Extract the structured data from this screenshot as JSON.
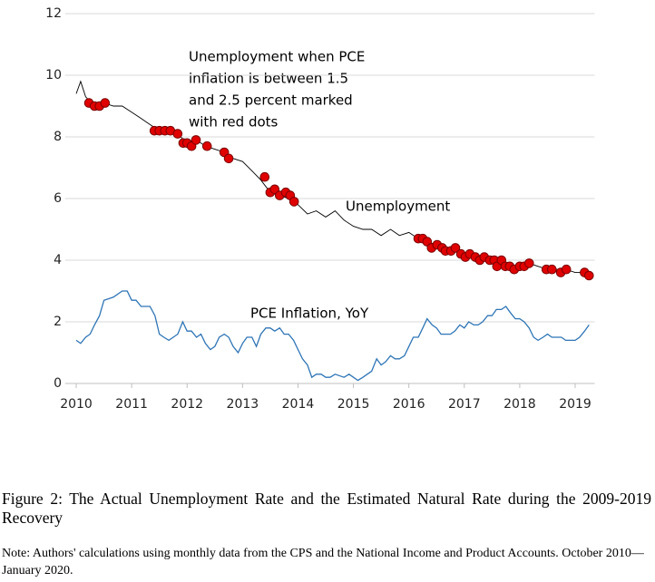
{
  "chart_data": {
    "type": "line",
    "xlim": [
      2009.8,
      2019.35
    ],
    "xticks": [
      2010,
      2011,
      2012,
      2013,
      2014,
      2015,
      2016,
      2017,
      2018,
      2019
    ],
    "ylim": [
      0,
      12
    ],
    "yticks": [
      0,
      2,
      4,
      6,
      8,
      10,
      12
    ],
    "grid": true,
    "annotations": [
      "Unemployment when PCE",
      "inflation is between 1.5",
      "and 2.5 percent marked",
      "with red dots"
    ],
    "series": [
      {
        "name": "Unemployment",
        "type": "line",
        "color": "#000000",
        "x": [
          2010,
          2010.08,
          2010.17,
          2010.33,
          2010.5,
          2010.67,
          2010.83,
          2011,
          2011.17,
          2011.33,
          2011.5,
          2011.67,
          2011.83,
          2012,
          2012.17,
          2012.33,
          2012.5,
          2012.67,
          2012.83,
          2013,
          2013.17,
          2013.33,
          2013.5,
          2013.67,
          2013.83,
          2014,
          2014.17,
          2014.33,
          2014.5,
          2014.67,
          2014.83,
          2015,
          2015.17,
          2015.33,
          2015.5,
          2015.67,
          2015.83,
          2016,
          2016.17,
          2016.33,
          2016.5,
          2016.67,
          2016.83,
          2017,
          2017.17,
          2017.33,
          2017.5,
          2017.67,
          2017.83,
          2018,
          2018.17,
          2018.33,
          2018.5,
          2018.67,
          2018.83,
          2019,
          2019.17,
          2019.25
        ],
        "values": [
          9.4,
          9.8,
          9.3,
          9.0,
          9.1,
          9.0,
          9.0,
          8.8,
          8.6,
          8.4,
          8.2,
          8.2,
          8.1,
          7.8,
          7.9,
          7.7,
          7.6,
          7.5,
          7.3,
          7.2,
          6.9,
          6.6,
          6.2,
          6.1,
          6.0,
          5.8,
          5.5,
          5.6,
          5.4,
          5.6,
          5.3,
          5.1,
          5.0,
          5.0,
          4.8,
          5.0,
          4.8,
          4.9,
          4.7,
          4.6,
          4.5,
          4.3,
          4.4,
          4.1,
          4.2,
          4.1,
          4.0,
          4.0,
          3.8,
          3.8,
          3.9,
          3.8,
          3.7,
          3.7,
          3.7,
          3.6,
          3.6,
          3.5
        ]
      },
      {
        "name": "PCE Inflation, YoY",
        "type": "line",
        "color": "#2e75b6",
        "x": [
          2010,
          2010.08,
          2010.17,
          2010.25,
          2010.33,
          2010.42,
          2010.5,
          2010.67,
          2010.83,
          2010.92,
          2011,
          2011.08,
          2011.17,
          2011.33,
          2011.42,
          2011.5,
          2011.58,
          2011.67,
          2011.83,
          2011.92,
          2012,
          2012.08,
          2012.17,
          2012.25,
          2012.33,
          2012.42,
          2012.5,
          2012.58,
          2012.67,
          2012.75,
          2012.83,
          2012.92,
          2013,
          2013.08,
          2013.17,
          2013.25,
          2013.33,
          2013.42,
          2013.5,
          2013.58,
          2013.67,
          2013.75,
          2013.83,
          2013.92,
          2014,
          2014.08,
          2014.17,
          2014.25,
          2014.33,
          2014.42,
          2014.5,
          2014.58,
          2014.67,
          2014.83,
          2014.92,
          2015,
          2015.08,
          2015.17,
          2015.25,
          2015.33,
          2015.42,
          2015.5,
          2015.58,
          2015.67,
          2015.75,
          2015.83,
          2015.92,
          2016,
          2016.08,
          2016.17,
          2016.25,
          2016.33,
          2016.42,
          2016.5,
          2016.58,
          2016.67,
          2016.75,
          2016.83,
          2016.92,
          2017,
          2017.08,
          2017.17,
          2017.25,
          2017.33,
          2017.42,
          2017.5,
          2017.58,
          2017.67,
          2017.75,
          2017.83,
          2017.92,
          2018,
          2018.08,
          2018.17,
          2018.25,
          2018.33,
          2018.42,
          2018.5,
          2018.58,
          2018.67,
          2018.75,
          2018.83,
          2018.92,
          2019,
          2019.08,
          2019.17,
          2019.25
        ],
        "values": [
          1.4,
          1.3,
          1.5,
          1.6,
          1.9,
          2.2,
          2.7,
          2.8,
          3.0,
          3.0,
          2.7,
          2.7,
          2.5,
          2.5,
          2.2,
          1.6,
          1.5,
          1.4,
          1.6,
          2.0,
          1.7,
          1.7,
          1.5,
          1.6,
          1.3,
          1.1,
          1.2,
          1.5,
          1.6,
          1.5,
          1.2,
          1.0,
          1.3,
          1.5,
          1.5,
          1.2,
          1.6,
          1.8,
          1.8,
          1.7,
          1.8,
          1.6,
          1.6,
          1.4,
          1.1,
          0.8,
          0.6,
          0.2,
          0.3,
          0.3,
          0.2,
          0.2,
          0.3,
          0.2,
          0.3,
          0.2,
          0.1,
          0.2,
          0.3,
          0.4,
          0.8,
          0.6,
          0.7,
          0.9,
          0.8,
          0.8,
          0.9,
          1.2,
          1.5,
          1.5,
          1.8,
          2.1,
          1.9,
          1.8,
          1.6,
          1.6,
          1.6,
          1.7,
          1.9,
          1.8,
          2.0,
          1.9,
          1.9,
          2.0,
          2.2,
          2.2,
          2.4,
          2.4,
          2.5,
          2.3,
          2.1,
          2.1,
          2.0,
          1.8,
          1.5,
          1.4,
          1.5,
          1.6,
          1.5,
          1.5,
          1.5,
          1.4,
          1.4,
          1.4,
          1.5,
          1.7,
          1.9
        ]
      },
      {
        "type": "scatter",
        "color": "#e00000",
        "x": [
          2010.23,
          2010.33,
          2010.42,
          2010.52,
          2011.41,
          2011.5,
          2011.6,
          2011.7,
          2011.83,
          2011.93,
          2012.0,
          2012.08,
          2012.16,
          2012.36,
          2012.67,
          2012.75,
          2013.4,
          2013.5,
          2013.58,
          2013.67,
          2013.78,
          2013.86,
          2013.93,
          2016.17,
          2016.25,
          2016.33,
          2016.41,
          2016.51,
          2016.6,
          2016.66,
          2016.76,
          2016.84,
          2016.94,
          2017.02,
          2017.1,
          2017.2,
          2017.28,
          2017.36,
          2017.46,
          2017.54,
          2017.59,
          2017.67,
          2017.74,
          2017.82,
          2017.9,
          2018.0,
          2018.08,
          2018.17,
          2018.48,
          2018.58,
          2018.74,
          2018.84,
          2019.17,
          2019.25
        ],
        "values": [
          9.1,
          9.0,
          9.0,
          9.1,
          8.2,
          8.2,
          8.2,
          8.2,
          8.1,
          7.8,
          7.8,
          7.7,
          7.9,
          7.7,
          7.5,
          7.3,
          6.7,
          6.2,
          6.3,
          6.1,
          6.2,
          6.1,
          5.9,
          4.7,
          4.7,
          4.6,
          4.4,
          4.5,
          4.4,
          4.3,
          4.3,
          4.4,
          4.2,
          4.1,
          4.2,
          4.1,
          4.0,
          4.1,
          4.0,
          4.0,
          3.8,
          4.0,
          3.8,
          3.8,
          3.7,
          3.8,
          3.8,
          3.9,
          3.7,
          3.7,
          3.6,
          3.7,
          3.6,
          3.5
        ]
      }
    ]
  },
  "caption": "Figure 2: The Actual Unemployment Rate and the Estimated Natural Rate during the 2009-2019 Recovery",
  "note": "Note: Authors' calculations using monthly data from the CPS and the National Income and Product Accounts. October 2010—January 2020."
}
